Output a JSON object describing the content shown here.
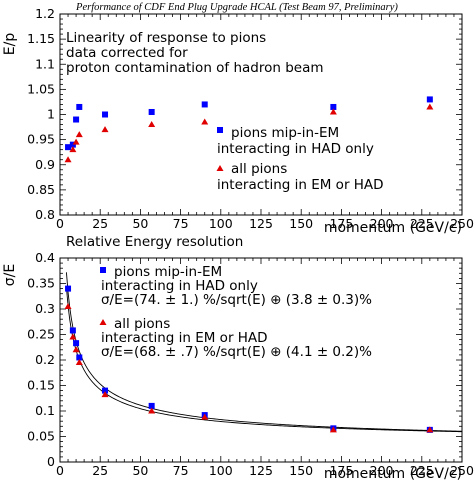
{
  "figure_title": "Performance of CDF End Plug Upgrade HCAL (Test Beam 97, Preliminary)",
  "colors": {
    "pions_mip": "#0000ff",
    "all_pions": "#e00000",
    "axis": "#000000",
    "fit": "#000000"
  },
  "chart_data": [
    {
      "type": "scatter",
      "title": "",
      "annotation_lines": [
        "Linearity of response to pions",
        "data corrected for",
        "proton contamination of hadron beam"
      ],
      "xlabel": "momentum (GeV/c)",
      "ylabel": "E/p",
      "xlim": [
        0,
        250
      ],
      "ylim": [
        0.8,
        1.2
      ],
      "xticks": [
        0,
        25,
        50,
        75,
        100,
        125,
        150,
        175,
        200,
        225,
        250
      ],
      "yticks": [
        0.8,
        0.85,
        0.9,
        0.95,
        1.0,
        1.05,
        1.1,
        1.15,
        1.2
      ],
      "ytick_labels": [
        "0.8",
        "0.85",
        "0.9",
        "0.95",
        "1",
        "1.05",
        "1.1",
        "1.15",
        "1.2"
      ],
      "series": [
        {
          "name": "pions mip-in-EM interacting in HAD only",
          "legend_lines": [
            "pions mip-in-EM",
            "interacting in HAD only"
          ],
          "marker": "square",
          "color": "#0000ff",
          "x": [
            5,
            8,
            10,
            12,
            28,
            57,
            90,
            170,
            230
          ],
          "y": [
            0.935,
            0.94,
            0.99,
            1.015,
            1.0,
            1.005,
            1.02,
            1.015,
            1.03
          ]
        },
        {
          "name": "all pions interacting in EM or HAD",
          "legend_lines": [
            "all pions",
            "interacting in EM or HAD"
          ],
          "marker": "triangle",
          "color": "#e00000",
          "x": [
            5,
            8,
            10,
            12,
            28,
            57,
            90,
            170,
            230
          ],
          "y": [
            0.91,
            0.93,
            0.945,
            0.96,
            0.97,
            0.98,
            0.985,
            1.005,
            1.015
          ]
        }
      ]
    },
    {
      "type": "scatter",
      "title": "Relative Energy resolution",
      "xlabel": "momentum (GeV/c)",
      "ylabel": "σ/E",
      "xlim": [
        0,
        250
      ],
      "ylim": [
        0,
        0.4
      ],
      "xticks": [
        0,
        25,
        50,
        75,
        100,
        125,
        150,
        175,
        200,
        225,
        250
      ],
      "yticks": [
        0,
        0.05,
        0.1,
        0.15,
        0.2,
        0.25,
        0.3,
        0.35,
        0.4
      ],
      "ytick_labels": [
        "0",
        "0.05",
        "0.1",
        "0.15",
        "0.2",
        "0.25",
        "0.3",
        "0.35",
        "0.4"
      ],
      "series": [
        {
          "name": "pions mip-in-EM interacting in HAD only",
          "legend_lines": [
            "pions mip-in-EM",
            "interacting in HAD only"
          ],
          "fit_label": "σ/E=(74. ± 1.) %/sqrt(E) ⊕ (3.8 ± 0.3)%",
          "marker": "square",
          "color": "#0000ff",
          "x": [
            5,
            8,
            10,
            12,
            28,
            57,
            90,
            170,
            230
          ],
          "y": [
            0.34,
            0.258,
            0.233,
            0.205,
            0.14,
            0.11,
            0.092,
            0.066,
            0.063
          ],
          "fit": {
            "stochastic": 0.74,
            "constant": 0.038
          }
        },
        {
          "name": "all pions interacting in EM or HAD",
          "legend_lines": [
            "all pions",
            "interacting in EM or HAD"
          ],
          "fit_label": "σ/E=(68. ± .7) %/sqrt(E) ⊕ (4.1 ± 0.2)%",
          "marker": "triangle",
          "color": "#e00000",
          "x": [
            5,
            8,
            10,
            12,
            28,
            57,
            90,
            170,
            230
          ],
          "y": [
            0.305,
            0.245,
            0.22,
            0.195,
            0.132,
            0.1,
            0.088,
            0.063,
            0.063
          ],
          "fit": {
            "stochastic": 0.68,
            "constant": 0.041
          }
        }
      ]
    }
  ]
}
